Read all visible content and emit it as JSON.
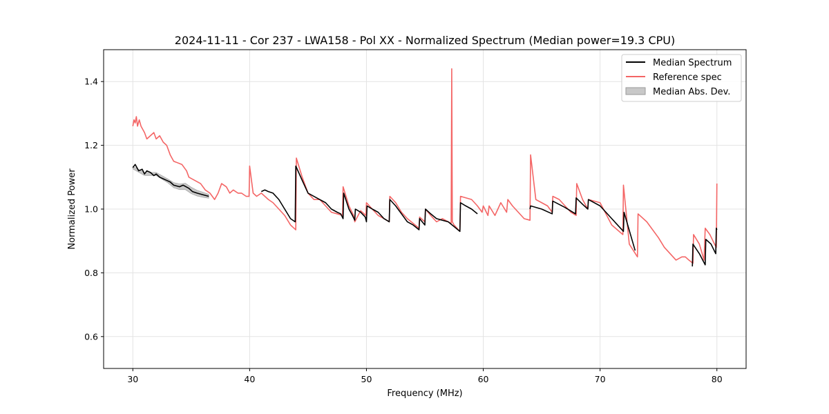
{
  "chart_data": {
    "type": "line",
    "title": "2024-11-11 - Cor 237 - LWA158 - Pol XX - Normalized Spectrum (Median power=19.3 CPU)",
    "xlabel": "Frequency (MHz)",
    "ylabel": "Normalized Power",
    "xlim": [
      27.5,
      82.5
    ],
    "ylim": [
      0.5,
      1.5
    ],
    "xticks": [
      30,
      40,
      50,
      60,
      70,
      80
    ],
    "yticks": [
      0.6,
      0.8,
      1.0,
      1.2,
      1.4
    ],
    "grid": true,
    "legend_position": "top-right",
    "colors": {
      "median": "#000000",
      "reference": "#f46565",
      "mad_fill": "#c8c8c8",
      "mad_edge": "#9a9a9a",
      "grid": "#e3e3e3"
    },
    "series": [
      {
        "name": "Median Spectrum",
        "x": [
          30.0,
          30.2,
          30.35,
          30.5,
          30.8,
          31.0,
          31.2,
          31.5,
          31.8,
          32.0,
          32.3,
          32.6,
          32.9,
          33.2,
          33.5,
          34.0,
          34.3,
          34.8,
          35.1,
          35.5,
          36.0,
          36.5,
          41.0,
          41.3,
          41.6,
          42.0,
          42.5,
          43.0,
          43.5,
          43.9,
          43.95,
          44.5,
          45.0,
          45.5,
          46.0,
          46.5,
          47.0,
          47.5,
          47.8,
          48.0,
          48.05,
          48.5,
          48.8,
          49.0,
          49.05,
          49.5,
          49.9,
          50.0,
          50.05,
          50.5,
          51.0,
          51.5,
          51.95,
          52.0,
          52.5,
          53.0,
          53.5,
          54.0,
          54.5,
          54.55,
          55.0,
          55.05,
          55.5,
          56.0,
          56.5,
          57.0,
          57.5,
          58.0,
          58.05,
          58.5,
          59.0,
          59.5,
          64.0,
          64.05,
          65.0,
          65.9,
          65.95,
          67.0,
          67.9,
          67.95,
          68.5,
          68.95,
          69.0,
          70.0,
          71.0,
          72.0,
          72.05,
          73.0,
          77.9,
          77.95,
          78.5,
          79.0,
          79.05,
          79.5,
          79.9,
          79.95,
          80.0
        ],
        "values": [
          1.13,
          1.14,
          1.13,
          1.12,
          1.125,
          1.11,
          1.12,
          1.115,
          1.105,
          1.11,
          1.1,
          1.095,
          1.09,
          1.085,
          1.075,
          1.07,
          1.075,
          1.065,
          1.055,
          1.05,
          1.045,
          1.04,
          1.055,
          1.06,
          1.055,
          1.05,
          1.03,
          1.0,
          0.97,
          0.96,
          1.135,
          1.09,
          1.05,
          1.04,
          1.03,
          1.02,
          1.0,
          0.99,
          0.985,
          0.97,
          1.05,
          1.0,
          0.98,
          0.965,
          1.0,
          0.99,
          0.975,
          0.96,
          1.01,
          1.0,
          0.99,
          0.97,
          0.96,
          1.03,
          1.01,
          0.985,
          0.96,
          0.95,
          0.935,
          0.97,
          0.95,
          1.0,
          0.985,
          0.97,
          0.965,
          0.96,
          0.945,
          0.93,
          1.02,
          1.01,
          1.0,
          0.985,
          1.0,
          1.01,
          1.0,
          0.985,
          1.025,
          1.005,
          0.985,
          1.035,
          1.015,
          1.0,
          1.03,
          1.01,
          0.97,
          0.93,
          0.99,
          0.87,
          0.82,
          0.89,
          0.86,
          0.825,
          0.905,
          0.89,
          0.86,
          0.94,
          0.935
        ]
      },
      {
        "name": "Reference spec",
        "x": [
          30.0,
          30.1,
          30.2,
          30.3,
          30.4,
          30.55,
          30.7,
          30.85,
          31.0,
          31.2,
          31.5,
          31.8,
          32.0,
          32.3,
          32.6,
          32.9,
          33.2,
          33.5,
          34.2,
          34.6,
          34.8,
          35.3,
          35.8,
          36.2,
          36.6,
          37.0,
          37.3,
          37.6,
          38.0,
          38.3,
          38.6,
          39.0,
          39.3,
          39.7,
          39.95,
          40.0,
          40.3,
          40.6,
          41.0,
          41.3,
          41.6,
          42.0,
          42.5,
          43.0,
          43.5,
          43.95,
          44.0,
          44.5,
          45.0,
          45.5,
          46.0,
          46.5,
          47.0,
          47.5,
          47.95,
          48.0,
          48.5,
          48.9,
          49.0,
          49.5,
          49.95,
          50.0,
          50.5,
          51.0,
          51.5,
          51.95,
          52.0,
          52.5,
          53.0,
          53.5,
          54.0,
          54.5,
          54.55,
          55.0,
          55.05,
          55.5,
          56.0,
          56.5,
          57.0,
          57.25,
          57.3,
          57.35,
          57.5,
          58.0,
          58.05,
          59.0,
          59.5,
          59.9,
          60.0,
          60.4,
          60.5,
          61.0,
          61.5,
          62.0,
          62.1,
          62.5,
          63.0,
          63.5,
          64.0,
          64.05,
          64.5,
          65.0,
          65.5,
          65.9,
          65.95,
          66.5,
          67.0,
          67.5,
          67.95,
          68.0,
          68.5,
          68.95,
          69.0,
          70.0,
          71.0,
          71.95,
          72.0,
          72.5,
          73.2,
          73.25,
          74.0,
          75.0,
          75.5,
          76.0,
          76.5,
          77.0,
          77.3,
          77.6,
          77.95,
          78.0,
          78.5,
          78.9,
          79.0,
          79.4,
          79.8,
          79.95,
          80.0
        ],
        "values": [
          1.26,
          1.28,
          1.27,
          1.29,
          1.26,
          1.28,
          1.26,
          1.25,
          1.24,
          1.22,
          1.23,
          1.24,
          1.22,
          1.23,
          1.21,
          1.2,
          1.17,
          1.15,
          1.14,
          1.12,
          1.1,
          1.09,
          1.08,
          1.06,
          1.05,
          1.03,
          1.05,
          1.08,
          1.07,
          1.05,
          1.06,
          1.05,
          1.05,
          1.04,
          1.04,
          1.135,
          1.05,
          1.04,
          1.05,
          1.04,
          1.03,
          1.02,
          1.0,
          0.98,
          0.95,
          0.935,
          1.16,
          1.1,
          1.05,
          1.03,
          1.03,
          1.01,
          0.99,
          0.985,
          0.98,
          1.07,
          1.01,
          0.98,
          0.96,
          0.995,
          0.98,
          1.02,
          1.0,
          0.98,
          0.97,
          0.96,
          1.04,
          1.02,
          0.99,
          0.97,
          0.955,
          0.94,
          0.975,
          0.96,
          1.0,
          0.98,
          0.96,
          0.97,
          0.96,
          0.955,
          1.44,
          0.96,
          0.95,
          0.93,
          1.04,
          1.03,
          1.01,
          0.99,
          1.01,
          0.98,
          1.01,
          0.98,
          1.02,
          0.99,
          1.03,
          1.01,
          0.99,
          0.97,
          0.965,
          1.17,
          1.03,
          1.02,
          1.01,
          0.99,
          1.04,
          1.03,
          1.01,
          0.99,
          0.98,
          1.08,
          1.03,
          1.0,
          1.03,
          1.02,
          0.95,
          0.92,
          1.075,
          0.89,
          0.85,
          0.985,
          0.96,
          0.91,
          0.88,
          0.86,
          0.84,
          0.85,
          0.85,
          0.84,
          0.83,
          0.92,
          0.89,
          0.84,
          0.94,
          0.92,
          0.89,
          0.88,
          1.08
        ]
      }
    ],
    "band": {
      "name": "Median Abs. Dev.",
      "x": [
        30.0,
        31.0,
        32.0,
        33.0,
        33.5,
        34.0,
        34.5,
        35.0,
        35.5,
        36.0,
        36.5
      ],
      "half_width": [
        0.004,
        0.005,
        0.005,
        0.006,
        0.008,
        0.009,
        0.01,
        0.01,
        0.009,
        0.008,
        0.006
      ]
    }
  }
}
